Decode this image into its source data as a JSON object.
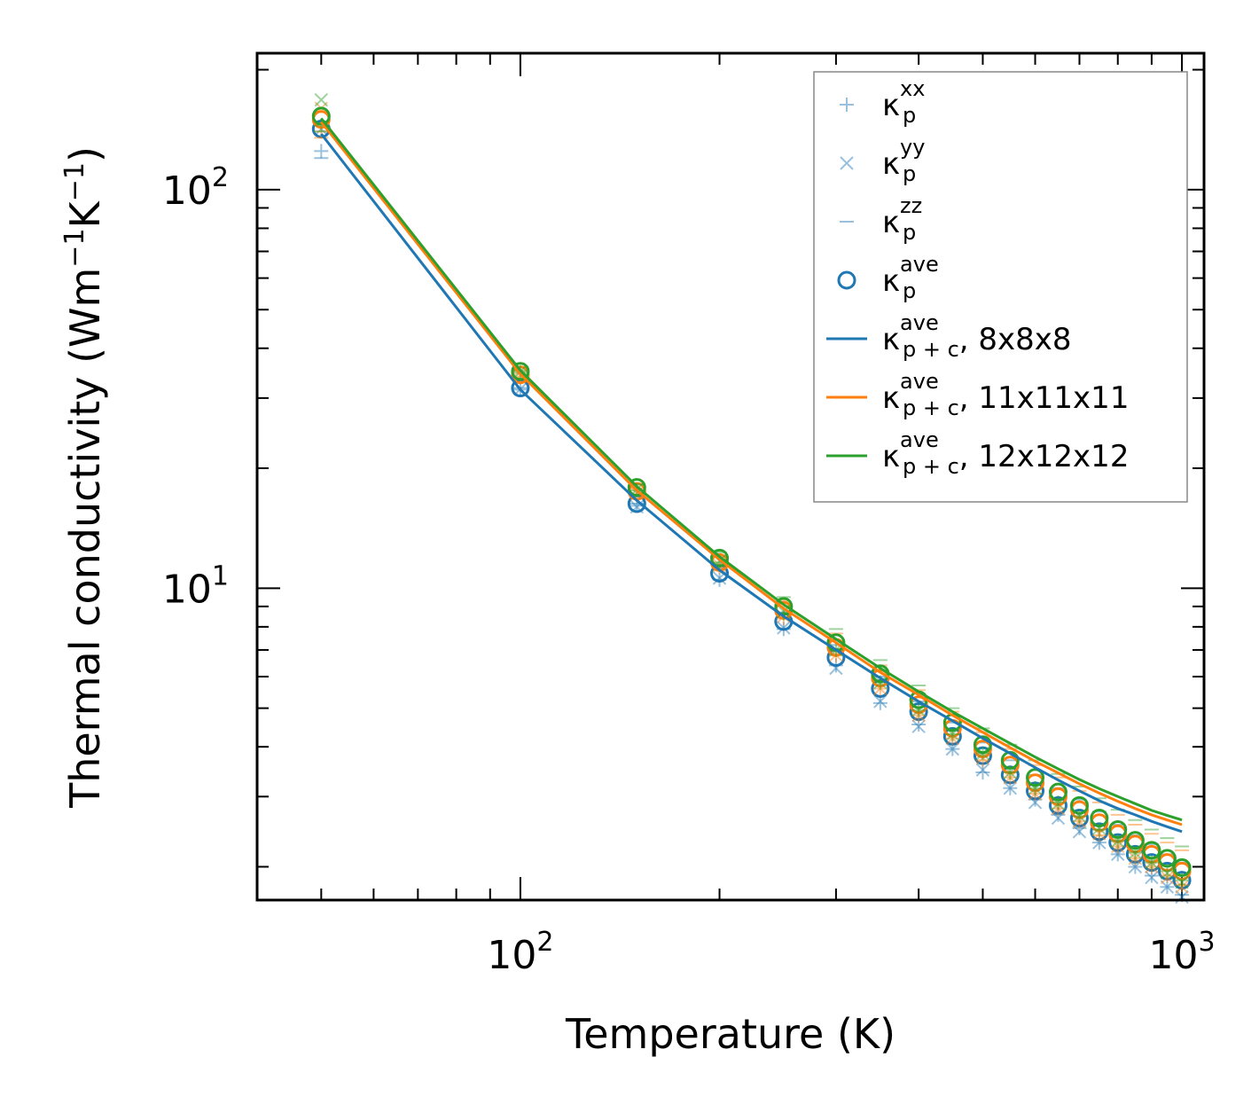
{
  "chart_data": {
    "type": "scatter",
    "xlabel": "Temperature (K)",
    "ylabel_main": "Thermal conductivity (Wm",
    "ylabel_exp1": "−1",
    "ylabel_mid": "K",
    "ylabel_exp2": "−1",
    "ylabel_end": ")",
    "xscale": "log",
    "yscale": "log",
    "xlim": [
      40,
      1080
    ],
    "ylim": [
      1.65,
      220
    ],
    "x_ticks": [
      {
        "value": 100,
        "base": "10",
        "exp": "2"
      },
      {
        "value": 1000,
        "base": "10",
        "exp": "3"
      }
    ],
    "y_ticks": [
      {
        "value": 10,
        "base": "10",
        "exp": "1"
      },
      {
        "value": 100,
        "base": "10",
        "exp": "2"
      }
    ],
    "legend_position": "top-right",
    "temperatures": [
      50,
      100,
      150,
      200,
      250,
      300,
      350,
      400,
      450,
      500,
      550,
      600,
      650,
      700,
      750,
      800,
      850,
      900,
      950,
      1000
    ],
    "series": [
      {
        "name": "8x8x8",
        "color": "#1f77b4",
        "xx": [
          125,
          31.5,
          16.1,
          10.5,
          7.9,
          6.4,
          5.15,
          4.55,
          3.95,
          3.45,
          3.15,
          2.95,
          2.7,
          2.5,
          2.3,
          2.15,
          2.0,
          1.9,
          1.78,
          1.7
        ],
        "yy": [
          142,
          31.6,
          16.0,
          10.6,
          7.95,
          6.3,
          5.2,
          4.5,
          3.95,
          3.5,
          3.15,
          2.9,
          2.65,
          2.45,
          2.3,
          2.15,
          2.0,
          1.88,
          1.78,
          1.68
        ],
        "zz": [
          120,
          31.8,
          16.3,
          11.2,
          8.7,
          7.2,
          6.0,
          5.2,
          4.6,
          4.1,
          3.7,
          3.4,
          3.15,
          2.95,
          2.75,
          2.55,
          2.4,
          2.28,
          2.15,
          2.05
        ],
        "ave": [
          142,
          31.8,
          16.3,
          10.9,
          8.25,
          6.7,
          5.6,
          4.9,
          4.25,
          3.8,
          3.4,
          3.1,
          2.85,
          2.65,
          2.45,
          2.3,
          2.15,
          2.05,
          1.95,
          1.85
        ],
        "pc": [
          138,
          31.5,
          16.6,
          11.1,
          8.5,
          7.0,
          5.95,
          5.2,
          4.65,
          4.2,
          3.85,
          3.55,
          3.3,
          3.1,
          2.93,
          2.8,
          2.7,
          2.6,
          2.52,
          2.45
        ]
      },
      {
        "name": "11x11x11",
        "color": "#ff7f0e",
        "xx": [
          140,
          34.0,
          17.2,
          11.3,
          8.4,
          6.8,
          5.6,
          4.8,
          4.2,
          3.7,
          3.35,
          3.05,
          2.8,
          2.6,
          2.4,
          2.25,
          2.1,
          2.0,
          1.9,
          1.8
        ],
        "yy": [
          160,
          34.2,
          17.3,
          11.4,
          8.5,
          6.8,
          5.6,
          4.8,
          4.2,
          3.75,
          3.35,
          3.05,
          2.8,
          2.6,
          2.42,
          2.25,
          2.1,
          2.0,
          1.88,
          1.78
        ],
        "zz": [
          135,
          34.5,
          17.8,
          12.0,
          9.3,
          7.7,
          6.4,
          5.55,
          4.9,
          4.35,
          3.95,
          3.6,
          3.35,
          3.1,
          2.9,
          2.7,
          2.55,
          2.42,
          2.3,
          2.2
        ],
        "ave": [
          150,
          34.3,
          17.5,
          11.6,
          8.8,
          7.1,
          5.95,
          5.1,
          4.45,
          3.95,
          3.6,
          3.25,
          3.0,
          2.78,
          2.58,
          2.42,
          2.28,
          2.15,
          2.05,
          1.95
        ],
        "pc": [
          148,
          34.5,
          17.6,
          11.8,
          8.9,
          7.3,
          6.15,
          5.4,
          4.8,
          4.35,
          3.98,
          3.68,
          3.44,
          3.23,
          3.06,
          2.92,
          2.8,
          2.7,
          2.62,
          2.55
        ]
      },
      {
        "name": "12x12x12",
        "color": "#2ca02c",
        "xx": [
          145,
          34.8,
          17.6,
          11.6,
          8.65,
          7.0,
          5.8,
          4.95,
          4.3,
          3.85,
          3.45,
          3.15,
          2.9,
          2.68,
          2.48,
          2.32,
          2.17,
          2.05,
          1.95,
          1.85
        ],
        "yy": [
          168,
          35.0,
          17.7,
          11.7,
          8.75,
          7.0,
          5.8,
          4.95,
          4.3,
          3.85,
          3.45,
          3.15,
          2.88,
          2.68,
          2.5,
          2.32,
          2.17,
          2.05,
          1.93,
          1.83
        ],
        "zz": [
          140,
          35.2,
          18.2,
          12.3,
          9.5,
          7.9,
          6.6,
          5.7,
          5.0,
          4.45,
          4.05,
          3.7,
          3.42,
          3.18,
          2.97,
          2.78,
          2.62,
          2.48,
          2.36,
          2.25
        ],
        "ave": [
          153,
          35.0,
          17.9,
          11.9,
          9.0,
          7.3,
          6.1,
          5.25,
          4.6,
          4.05,
          3.7,
          3.35,
          3.08,
          2.85,
          2.65,
          2.48,
          2.33,
          2.2,
          2.1,
          1.99
        ],
        "pc": [
          151,
          35.2,
          18.0,
          12.0,
          9.1,
          7.45,
          6.3,
          5.5,
          4.9,
          4.45,
          4.08,
          3.77,
          3.52,
          3.31,
          3.14,
          3.0,
          2.88,
          2.77,
          2.69,
          2.62
        ]
      }
    ],
    "legend": [
      {
        "kind": "plus",
        "sym": "κ",
        "sup": "xx",
        "sub": "p",
        "suffix": ""
      },
      {
        "kind": "cross",
        "sym": "κ",
        "sup": "yy",
        "sub": "p",
        "suffix": ""
      },
      {
        "kind": "dash",
        "sym": "κ",
        "sup": "zz",
        "sub": "p",
        "suffix": ""
      },
      {
        "kind": "circle",
        "sym": "κ",
        "sup": "ave",
        "sub": "p",
        "suffix": ""
      },
      {
        "kind": "line",
        "color": "#1f77b4",
        "sym": "κ",
        "sup": "ave",
        "sub": "p + c",
        "suffix": ", 8x8x8"
      },
      {
        "kind": "line",
        "color": "#ff7f0e",
        "sym": "κ",
        "sup": "ave",
        "sub": "p + c",
        "suffix": ", 11x11x11"
      },
      {
        "kind": "line",
        "color": "#2ca02c",
        "sym": "κ",
        "sup": "ave",
        "sub": "p + c",
        "suffix": ", 12x12x12"
      }
    ],
    "legend_marker_color": "#1f77b4"
  }
}
